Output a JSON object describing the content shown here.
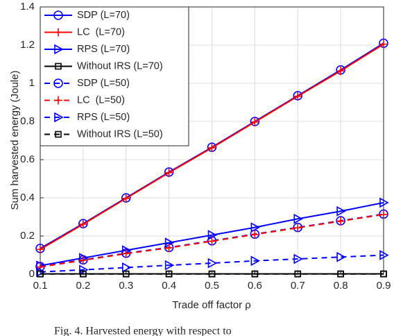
{
  "chart_data": {
    "type": "line",
    "xlabel": "Trade off factor ρ",
    "ylabel": "Sum harvested energy (Joule)",
    "caption": "Fig. 4. Harvested energy with respect to",
    "x": [
      0.1,
      0.2,
      0.3,
      0.4,
      0.5,
      0.6,
      0.7,
      0.8,
      0.9
    ],
    "xlim": [
      0.1,
      0.9
    ],
    "xticks": [
      0.1,
      0.2,
      0.3,
      0.4,
      0.5,
      0.6,
      0.7,
      0.8,
      0.9
    ],
    "ylim": [
      0,
      1.4
    ],
    "yticks": [
      0,
      0.2,
      0.4,
      0.6,
      0.8,
      1,
      1.2,
      1.4
    ],
    "grid": true,
    "legend": "upper left",
    "series": [
      {
        "name": "SDP (L=70)",
        "color": "#0000ff",
        "dash": "solid",
        "marker": "circle",
        "values": [
          0.135,
          0.265,
          0.4,
          0.535,
          0.665,
          0.8,
          0.935,
          1.07,
          1.21
        ]
      },
      {
        "name": "LC  (L=70)",
        "color": "#ff0000",
        "dash": "solid",
        "marker": "plus",
        "values": [
          0.13,
          0.262,
          0.397,
          0.532,
          0.662,
          0.797,
          0.932,
          1.065,
          1.205
        ]
      },
      {
        "name": "RPS (L=70)",
        "color": "#0000ff",
        "dash": "solid",
        "marker": "triangle-right",
        "values": [
          0.045,
          0.085,
          0.125,
          0.165,
          0.205,
          0.245,
          0.29,
          0.33,
          0.375
        ]
      },
      {
        "name": "Without IRS (L=70)",
        "color": "#000000",
        "dash": "solid",
        "marker": "square",
        "values": [
          0.002,
          0.002,
          0.002,
          0.002,
          0.002,
          0.002,
          0.002,
          0.002,
          0.002
        ]
      },
      {
        "name": "SDP (L=50)",
        "color": "#0000ff",
        "dash": "dashed",
        "marker": "circle",
        "values": [
          0.04,
          0.075,
          0.11,
          0.14,
          0.175,
          0.21,
          0.245,
          0.28,
          0.315
        ]
      },
      {
        "name": "LC  (L=50)",
        "color": "#ff0000",
        "dash": "dashed",
        "marker": "plus",
        "values": [
          0.038,
          0.073,
          0.108,
          0.138,
          0.173,
          0.208,
          0.243,
          0.278,
          0.313
        ]
      },
      {
        "name": "RPS (L=50)",
        "color": "#0000ff",
        "dash": "dashed",
        "marker": "triangle-right",
        "values": [
          0.012,
          0.023,
          0.035,
          0.047,
          0.058,
          0.07,
          0.08,
          0.09,
          0.1
        ]
      },
      {
        "name": "Without IRS (L=50)",
        "color": "#000000",
        "dash": "dashed",
        "marker": "square",
        "values": [
          0.001,
          0.001,
          0.001,
          0.001,
          0.001,
          0.001,
          0.001,
          0.001,
          0.001
        ]
      }
    ]
  }
}
